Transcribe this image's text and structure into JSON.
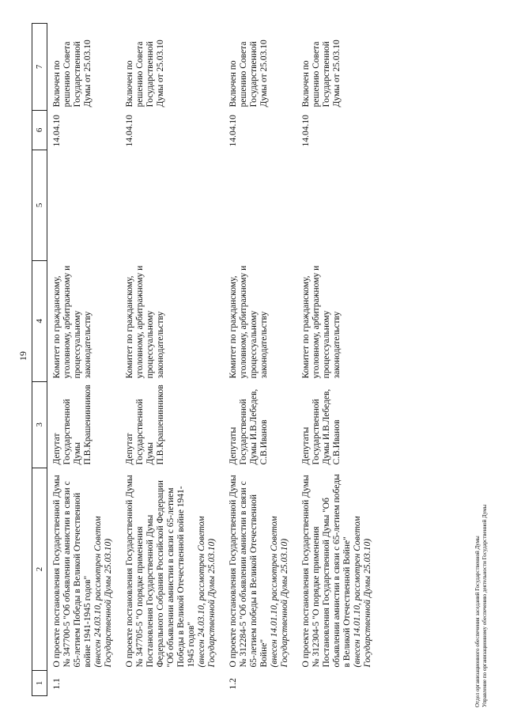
{
  "header": {
    "page_number": "19"
  },
  "table": {
    "columns": [
      "1",
      "2",
      "3",
      "4",
      "5",
      "6",
      "7"
    ],
    "rows": [
      {
        "number": "1.1",
        "title": "О проекте постановления Государственной Думы № 347700-5 \"Об объявлении амнистии в связи с 65-летием Победы в Великой Отечественной войне 1941-1945 годов\"",
        "note": "(внесен 24.03.10, рассмотрен Советом Государственной Думы 25.03.10)",
        "author": "Депутат Государственной Думы П.В.Крашенинников",
        "committee": "Комитет по гражданскому, уголовному, арбитражному и процессуальному законодательству",
        "date": "14.04.10",
        "status": "Включен по решению Совета Государственной Думы от 25.03.10"
      },
      {
        "title": "О проекте постановления Государственной Думы № 347705-5 \"О порядке применения Постановления Государственной Думы Федерального Собрания Российской Федерации \"Об объявлении амнистии в связи с 65-летием Победы в Великой Отечественной войне 1941-1945 годов\"",
        "note": "(внесен 24.03.10, рассмотрен Советом Государственной Думы 25.03.10)",
        "author": "Депутат Государственной Думы П.В.Крашенинников",
        "committee": "Комитет по гражданскому, уголовному, арбитражному и процессуальному законодательству",
        "date": "14.04.10",
        "status": "Включен по решению Совета Государственной Думы от 25.03.10"
      },
      {
        "number": "1.2",
        "title": "О проекте постановления Государственной Думы № 312284-5 \"Об объявлении амнистии в связи с 65-летием победы в Великой Отечественной Войне\"",
        "note": "(внесен 14.01.10, рассмотрен Советом Государственной Думы 25.03.10)",
        "author": "Депутаты Государственной Думы И.В.Лебедев, С.В.Иванов",
        "committee": "Комитет по гражданскому, уголовному, арбитражному и процессуальному законодательству",
        "date": "14.04.10",
        "status": "Включен по решению Совета Государственной Думы от 25.03.10"
      },
      {
        "title": "О проекте постановления Государственной Думы № 312304-5 \"О порядке применения Постановления Государственной Думы \"Об объявлении амнистии в связи с 65-летием победы в Великой Отечественной Войне\"",
        "note": "(внесен 14.01.10, рассмотрен Советом Государственной Думы 25.03.10)",
        "author": "Депутаты Государственной Думы И.В.Лебедев, С.В.Иванов",
        "committee": "Комитет по гражданскому, уголовному, арбитражному и процессуальному законодательству",
        "date": "14.04.10",
        "status": "Включен по решению Совета Государственной Думы от 25.03.10"
      }
    ]
  },
  "footer": {
    "lines": [
      "Отдел организационного обеспечения заседаний Государственной Думы",
      "Управление по организационному обеспечению деятельности Государственной Думы"
    ]
  }
}
